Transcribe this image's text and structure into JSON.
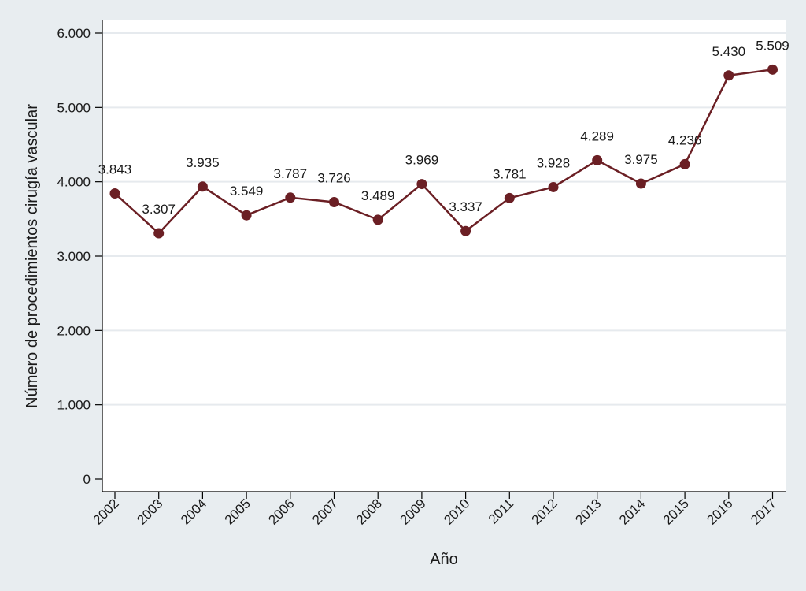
{
  "chart_data": {
    "type": "line",
    "title": "",
    "xlabel": "Año",
    "ylabel": "Número de procedimientos cirugía vascular",
    "ylim": [
      0,
      6000
    ],
    "yticks": [
      0,
      1000,
      2000,
      3000,
      4000,
      5000,
      6000
    ],
    "ytick_labels": [
      "0",
      "1.000",
      "2.000",
      "3.000",
      "4.000",
      "5.000",
      "6.000"
    ],
    "categories": [
      "2002",
      "2003",
      "2004",
      "2005",
      "2006",
      "2007",
      "2008",
      "2009",
      "2010",
      "2011",
      "2012",
      "2013",
      "2014",
      "2015",
      "2016",
      "2017"
    ],
    "series": [
      {
        "values": [
          3843,
          3307,
          3935,
          3549,
          3787,
          3726,
          3489,
          3969,
          3337,
          3781,
          3928,
          4289,
          3975,
          4236,
          5430,
          5509
        ],
        "labels": [
          "3.843",
          "3.307",
          "3.935",
          "3.549",
          "3.787",
          "3.726",
          "3.489",
          "3.969",
          "3.337",
          "3.781",
          "3.928",
          "4.289",
          "3.975",
          "4.236",
          "5.430",
          "5.509"
        ],
        "color": "#6b1f24"
      }
    ],
    "grid": true,
    "background": "#e8edf0",
    "plot_background": "#ffffff"
  }
}
